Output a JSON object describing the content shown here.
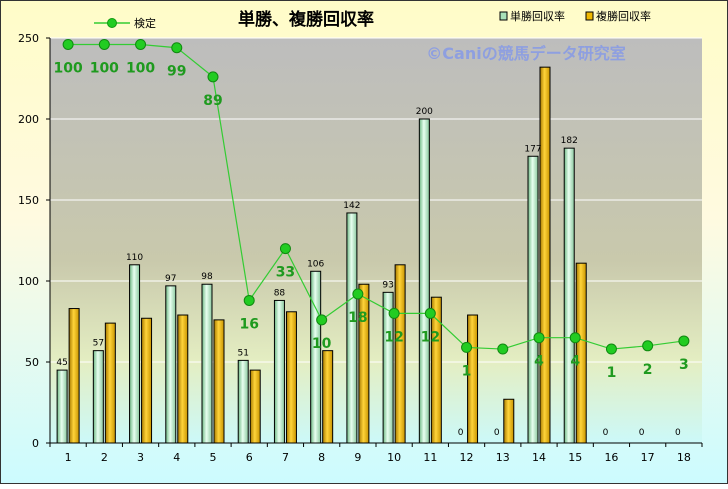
{
  "chart_data": {
    "type": "bar",
    "title": "単勝、複勝回収率",
    "watermark": "©Caniの競馬データ研究室",
    "categories": [
      "1",
      "2",
      "3",
      "4",
      "5",
      "6",
      "7",
      "8",
      "9",
      "10",
      "11",
      "12",
      "13",
      "14",
      "15",
      "16",
      "17",
      "18"
    ],
    "ylim": [
      0,
      250
    ],
    "yticks": [
      "0",
      "50",
      "100",
      "150",
      "200",
      "250"
    ],
    "grid": true,
    "legend_position": "top-right",
    "series": [
      {
        "name": "単勝回収率",
        "type": "bar",
        "color": "#a8e0b8",
        "values": [
          45,
          57,
          110,
          97,
          98,
          51,
          88,
          106,
          142,
          93,
          200,
          0,
          0,
          177,
          182,
          0,
          0,
          0
        ],
        "labels": [
          "45",
          "57",
          "110",
          "97",
          "98",
          "51",
          "88",
          "106",
          "142",
          "93",
          "200",
          "0",
          "0",
          "177",
          "182",
          "0",
          "0",
          "0"
        ]
      },
      {
        "name": "複勝回収率",
        "type": "bar",
        "color": "#f0b800",
        "values": [
          83,
          74,
          77,
          79,
          76,
          45,
          81,
          57,
          98,
          110,
          90,
          79,
          27,
          232,
          111,
          0,
          0,
          0
        ]
      },
      {
        "name": "検定",
        "type": "line",
        "color": "#33cc33",
        "values": [
          246,
          246,
          246,
          244,
          226,
          88,
          120,
          76,
          92,
          80,
          80,
          59,
          58,
          65,
          65,
          58,
          60,
          63
        ],
        "labels": [
          "100",
          "100",
          "100",
          "99",
          "89",
          "16",
          "33",
          "10",
          "18",
          "12",
          "12",
          "1",
          "",
          "4",
          "4",
          "1",
          "2",
          "3"
        ]
      }
    ]
  }
}
